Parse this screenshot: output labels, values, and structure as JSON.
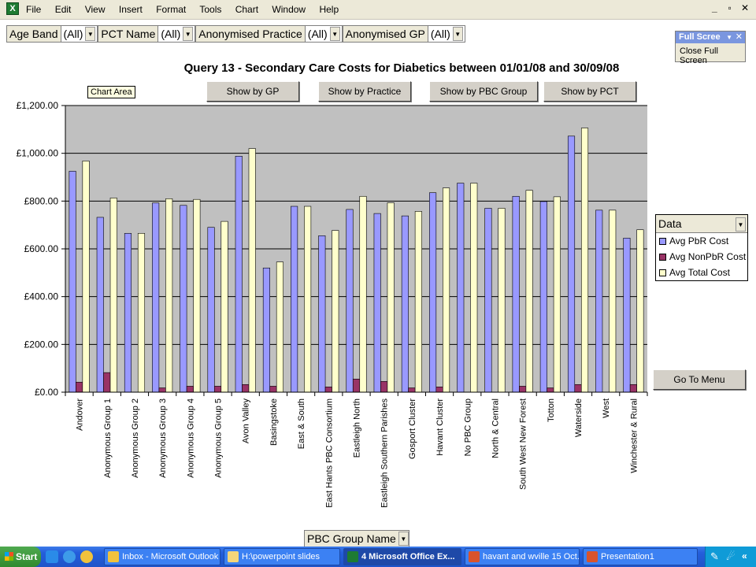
{
  "menubar": {
    "items": [
      "File",
      "Edit",
      "View",
      "Insert",
      "Format",
      "Tools",
      "Chart",
      "Window",
      "Help"
    ],
    "window_controls": [
      "_",
      "▫",
      "✕"
    ]
  },
  "filters": [
    {
      "label": "Age Band",
      "value": "(All)"
    },
    {
      "label": "PCT Name",
      "value": "(All)"
    },
    {
      "label": "Anonymised Practice",
      "value": "(All)"
    },
    {
      "label": "Anonymised GP",
      "value": "(All)"
    }
  ],
  "fullscreen_toolbar": {
    "title": "Full Scree",
    "button": "Close Full Screen"
  },
  "tooltip": "Chart Area",
  "buttons": {
    "by_gp": "Show by GP",
    "by_practice": "Show by Practice",
    "by_pbc": "Show by PBC Group",
    "by_pct": "Show by PCT",
    "go_to_menu": "Go To Menu"
  },
  "legend": {
    "header": "Data"
  },
  "pbc_field": "PBC Group Name",
  "colors": {
    "pbr": "#9999ff",
    "nonpbr": "#993366",
    "total": "#ffffcc",
    "plot_bg": "#c0c0c0"
  },
  "chart_data": {
    "type": "bar",
    "title": "Query 13 - Secondary Care Costs for Diabetics between 01/01/08 and 30/09/08",
    "xlabel": "PBC Group Name",
    "ylabel": "",
    "ylim": [
      0,
      1200
    ],
    "yticks": [
      "£0.00",
      "£200.00",
      "£400.00",
      "£600.00",
      "£800.00",
      "£1,000.00",
      "£1,200.00"
    ],
    "grid": true,
    "legend_position": "right",
    "categories": [
      "Andover",
      "Anonymous Group 1",
      "Anonymous Group 2",
      "Anonymous Group 3",
      "Anonymous Group 4",
      "Anonymous Group 5",
      "Avon Valley",
      "Basingstoke",
      "East & South",
      "East Hants PBC Consortium",
      "Eastleigh North",
      "Eastleigh Southern Parishes",
      "Gosport Cluster",
      "Havant Cluster",
      "No PBC Group",
      "North & Central",
      "South West New Forest",
      "Totton",
      "Waterside",
      "West",
      "Winchester & Rural"
    ],
    "series": [
      {
        "name": "Avg PbR Cost",
        "values": [
          925,
          732,
          665,
          792,
          782,
          690,
          988,
          520,
          778,
          655,
          765,
          748,
          738,
          835,
          875,
          770,
          820,
          798,
          1072,
          762,
          645
        ]
      },
      {
        "name": "Avg NonPbR Cost",
        "values": [
          42,
          82,
          0,
          18,
          25,
          25,
          32,
          25,
          0,
          22,
          55,
          45,
          18,
          22,
          0,
          0,
          25,
          18,
          32,
          0,
          32
        ]
      },
      {
        "name": "Avg Total Cost",
        "values": [
          968,
          813,
          665,
          810,
          807,
          715,
          1020,
          545,
          778,
          677,
          820,
          793,
          757,
          855,
          875,
          770,
          845,
          818,
          1106,
          762,
          680
        ]
      }
    ]
  },
  "taskbar": {
    "start": "Start",
    "tasks": [
      {
        "label": "Inbox - Microsoft Outlook",
        "active": false
      },
      {
        "label": "H:\\powerpoint slides",
        "active": false
      },
      {
        "label": "4 Microsoft Office Ex...",
        "active": true
      },
      {
        "label": "havant and wville 15 Oct...",
        "active": false
      },
      {
        "label": "Presentation1",
        "active": false
      }
    ]
  }
}
